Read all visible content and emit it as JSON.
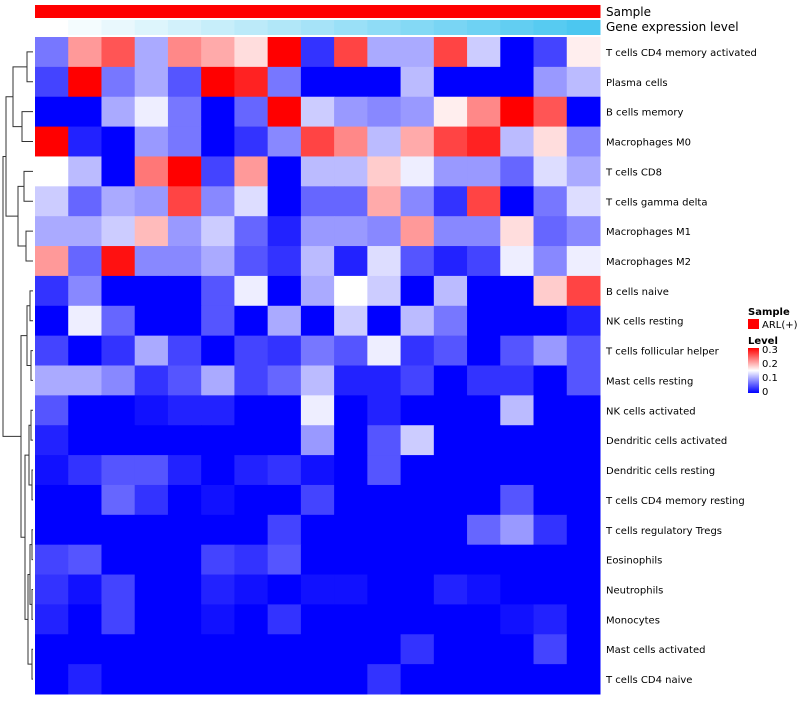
{
  "chart_data": {
    "type": "heatmap",
    "title": "",
    "top_annotations": [
      {
        "label": "Sample",
        "color": "#ff0000"
      },
      {
        "label": "Gene expression level",
        "colors_from": "#ffffff",
        "colors_to": "#4cc7f0"
      }
    ],
    "columns": 17,
    "rows": [
      "T cells CD4 memory activated",
      "Plasma cells",
      "B cells memory",
      "Macrophages M0",
      "T cells CD8",
      "T cells gamma delta",
      "Macrophages M1",
      "Macrophages M2",
      "B cells naive",
      "NK cells resting",
      "T cells follicular helper",
      "Mast cells resting",
      "NK cells activated",
      "Dendritic cells activated",
      "Dendritic cells resting",
      "T cells CD4 memory resting",
      "T cells regulatory  Tregs",
      "Eosinophils",
      "Neutrophils",
      "Monocytes",
      "Mast cells activated",
      "T cells CD4 naive"
    ],
    "values": [
      [
        0.07,
        0.21,
        0.25,
        0.1,
        0.22,
        0.2,
        0.17,
        0.33,
        0.03,
        0.26,
        0.1,
        0.1,
        0.26,
        0.12,
        0.0,
        0.04,
        0.16
      ],
      [
        0.04,
        0.32,
        0.07,
        0.1,
        0.05,
        0.33,
        0.28,
        0.07,
        0.0,
        0.0,
        0.0,
        0.11,
        0.0,
        0.0,
        0.0,
        0.09,
        0.11
      ],
      [
        0.0,
        0.0,
        0.1,
        0.14,
        0.07,
        0.0,
        0.06,
        0.33,
        0.12,
        0.09,
        0.08,
        0.09,
        0.16,
        0.22,
        0.33,
        0.25,
        0.0
      ],
      [
        0.33,
        0.02,
        0.0,
        0.09,
        0.07,
        0.0,
        0.03,
        0.08,
        0.26,
        0.22,
        0.11,
        0.2,
        0.26,
        0.28,
        0.11,
        0.17,
        0.08
      ],
      [
        0.15,
        0.11,
        0.0,
        0.23,
        0.3,
        0.04,
        0.21,
        0.0,
        0.11,
        0.11,
        0.18,
        0.14,
        0.09,
        0.09,
        0.06,
        0.13,
        0.1
      ],
      [
        0.12,
        0.06,
        0.1,
        0.09,
        0.26,
        0.08,
        0.13,
        0.0,
        0.06,
        0.06,
        0.2,
        0.08,
        0.03,
        0.26,
        0.0,
        0.07,
        0.13
      ],
      [
        0.1,
        0.1,
        0.12,
        0.19,
        0.09,
        0.12,
        0.06,
        0.02,
        0.09,
        0.09,
        0.08,
        0.21,
        0.08,
        0.08,
        0.17,
        0.06,
        0.08
      ],
      [
        0.21,
        0.06,
        0.29,
        0.08,
        0.08,
        0.1,
        0.05,
        0.03,
        0.11,
        0.02,
        0.13,
        0.05,
        0.02,
        0.04,
        0.14,
        0.08,
        0.14
      ],
      [
        0.03,
        0.08,
        0.0,
        0.0,
        0.0,
        0.05,
        0.14,
        0.0,
        0.1,
        0.15,
        0.12,
        0.0,
        0.11,
        0.0,
        0.0,
        0.18,
        0.26
      ],
      [
        0.0,
        0.14,
        0.06,
        0.0,
        0.0,
        0.05,
        0.0,
        0.1,
        0.0,
        0.12,
        0.0,
        0.11,
        0.07,
        0.0,
        0.0,
        0.0,
        0.02
      ],
      [
        0.04,
        0.0,
        0.03,
        0.1,
        0.04,
        0.0,
        0.04,
        0.03,
        0.07,
        0.05,
        0.14,
        0.03,
        0.05,
        0.0,
        0.05,
        0.09,
        0.05
      ],
      [
        0.1,
        0.1,
        0.08,
        0.03,
        0.05,
        0.1,
        0.04,
        0.06,
        0.11,
        0.02,
        0.02,
        0.04,
        0.0,
        0.03,
        0.03,
        0.0,
        0.05
      ],
      [
        0.05,
        0.0,
        0.0,
        0.01,
        0.02,
        0.02,
        0.0,
        0.0,
        0.14,
        0.0,
        0.02,
        0.0,
        0.0,
        0.0,
        0.11,
        0.0,
        0.0
      ],
      [
        0.02,
        0.0,
        0.0,
        0.0,
        0.0,
        0.0,
        0.0,
        0.0,
        0.09,
        0.0,
        0.05,
        0.12,
        0.0,
        0.0,
        0.0,
        0.0,
        0.0
      ],
      [
        0.01,
        0.03,
        0.05,
        0.05,
        0.02,
        0.0,
        0.02,
        0.03,
        0.01,
        0.0,
        0.05,
        0.0,
        0.0,
        0.0,
        0.0,
        0.0,
        0.0
      ],
      [
        0.0,
        0.0,
        0.06,
        0.03,
        0.0,
        0.01,
        0.0,
        0.0,
        0.04,
        0.0,
        0.0,
        0.0,
        0.0,
        0.0,
        0.05,
        0.0,
        0.0
      ],
      [
        0.0,
        0.0,
        0.0,
        0.0,
        0.0,
        0.0,
        0.0,
        0.04,
        0.0,
        0.0,
        0.0,
        0.0,
        0.0,
        0.06,
        0.09,
        0.03,
        0.0
      ],
      [
        0.04,
        0.05,
        0.0,
        0.0,
        0.0,
        0.04,
        0.03,
        0.05,
        0.0,
        0.0,
        0.0,
        0.0,
        0.0,
        0.0,
        0.0,
        0.0,
        0.0
      ],
      [
        0.03,
        0.01,
        0.04,
        0.0,
        0.0,
        0.02,
        0.01,
        0.0,
        0.01,
        0.01,
        0.0,
        0.0,
        0.02,
        0.01,
        0.0,
        0.0,
        0.0
      ],
      [
        0.02,
        0.0,
        0.04,
        0.0,
        0.0,
        0.01,
        0.0,
        0.03,
        0.0,
        0.0,
        0.0,
        0.0,
        0.0,
        0.0,
        0.01,
        0.02,
        0.0
      ],
      [
        0.0,
        0.0,
        0.0,
        0.0,
        0.0,
        0.0,
        0.0,
        0.0,
        0.0,
        0.0,
        0.0,
        0.03,
        0.0,
        0.0,
        0.0,
        0.04,
        0.0
      ],
      [
        0.0,
        0.02,
        0.0,
        0.0,
        0.0,
        0.0,
        0.0,
        0.0,
        0.0,
        0.0,
        0.03,
        0.0,
        0.0,
        0.0,
        0.0,
        0.0,
        0.0
      ]
    ],
    "color_scale": {
      "min": 0,
      "mid": 0.15,
      "max": 0.3,
      "low": "#0000ff",
      "midColor": "#ffffff",
      "high": "#ff0000"
    },
    "legend": {
      "sample_title": "Sample",
      "sample_entry": "ARL(+)",
      "sample_color": "#ff0000",
      "level_title": "Level",
      "level_ticks": [
        "0.3",
        "0.2",
        "0.1",
        "0"
      ],
      "placement": "right"
    }
  }
}
